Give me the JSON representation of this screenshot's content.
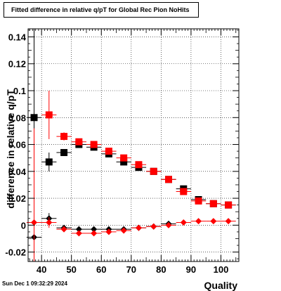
{
  "title": "Fitted difference in relative q/pT for Global Rec Pion NoHits",
  "timestamp": "Sun Dec  1 09:32:29 2024",
  "chart_data": {
    "type": "scatter",
    "xlabel": "Quality",
    "ylabel": "difference in relative q/pT",
    "xlim": [
      35.5,
      106
    ],
    "ylim": [
      -0.027,
      0.146
    ],
    "grid": true,
    "x_ticks": [
      40,
      50,
      60,
      70,
      80,
      90,
      100
    ],
    "y_ticks": [
      -0.02,
      0,
      0.02,
      0.04,
      0.06,
      0.08,
      0.1,
      0.12,
      0.14
    ],
    "y_tick_labels": [
      "-0.02",
      "0",
      "0.02",
      "0.04",
      "0.06",
      "0.08",
      "0.1",
      "0.12",
      "0.14"
    ],
    "marker_colors": {
      "black": "#000000",
      "red": "#ff0000"
    },
    "series": [
      {
        "marker": "square",
        "color": "#000000",
        "points": [
          {
            "x": 37.5,
            "y": 0.08,
            "yerr": 0.07
          },
          {
            "x": 42.5,
            "y": 0.047,
            "yerr": 0.007
          },
          {
            "x": 47.5,
            "y": 0.054,
            "yerr": 0.002
          },
          {
            "x": 52.5,
            "y": 0.06,
            "yerr": 0.001
          },
          {
            "x": 57.5,
            "y": 0.058,
            "yerr": 0.001
          },
          {
            "x": 62.5,
            "y": 0.053,
            "yerr": 0.001
          },
          {
            "x": 67.5,
            "y": 0.047,
            "yerr": 0.001
          },
          {
            "x": 72.5,
            "y": 0.043,
            "yerr": 0.001
          },
          {
            "x": 77.5,
            "y": 0.04,
            "yerr": 0.001
          },
          {
            "x": 82.5,
            "y": 0.034,
            "yerr": 0.001
          },
          {
            "x": 87.5,
            "y": 0.027,
            "yerr": 0.001
          },
          {
            "x": 92.5,
            "y": 0.019,
            "yerr": 0.001
          },
          {
            "x": 97.5,
            "y": 0.016,
            "yerr": 0.001
          },
          {
            "x": 102.5,
            "y": 0.015,
            "yerr": 0.001
          }
        ]
      },
      {
        "marker": "square",
        "color": "#ff0000",
        "points": [
          {
            "x": 42.5,
            "y": 0.082,
            "yerr": 0.018
          },
          {
            "x": 47.5,
            "y": 0.066,
            "yerr": 0.003
          },
          {
            "x": 52.5,
            "y": 0.062,
            "yerr": 0.001
          },
          {
            "x": 57.5,
            "y": 0.06,
            "yerr": 0.001
          },
          {
            "x": 62.5,
            "y": 0.055,
            "yerr": 0.001
          },
          {
            "x": 67.5,
            "y": 0.05,
            "yerr": 0.001
          },
          {
            "x": 72.5,
            "y": 0.045,
            "yerr": 0.001
          },
          {
            "x": 77.5,
            "y": 0.04,
            "yerr": 0.001
          },
          {
            "x": 82.5,
            "y": 0.034,
            "yerr": 0.001
          },
          {
            "x": 87.5,
            "y": 0.025,
            "yerr": 0.001
          },
          {
            "x": 92.5,
            "y": 0.018,
            "yerr": 0.001
          },
          {
            "x": 97.5,
            "y": 0.016,
            "yerr": 0.001
          },
          {
            "x": 102.5,
            "y": 0.015,
            "yerr": 0.001
          }
        ]
      },
      {
        "marker": "diamond",
        "color": "#000000",
        "points": [
          {
            "x": 37.5,
            "y": -0.009,
            "yerr": 0.018
          },
          {
            "x": 42.5,
            "y": 0.005,
            "yerr": 0.004
          },
          {
            "x": 47.5,
            "y": -0.002,
            "yerr": 0.001
          },
          {
            "x": 52.5,
            "y": -0.003,
            "yerr": 0.001
          },
          {
            "x": 57.5,
            "y": -0.003,
            "yerr": 0.001
          },
          {
            "x": 62.5,
            "y": -0.003,
            "yerr": 0.001
          },
          {
            "x": 67.5,
            "y": -0.003,
            "yerr": 0.001
          },
          {
            "x": 72.5,
            "y": -0.002,
            "yerr": 0.001
          },
          {
            "x": 77.5,
            "y": -0.001,
            "yerr": 0.001
          },
          {
            "x": 82.5,
            "y": 0.001,
            "yerr": 0.001
          }
        ]
      },
      {
        "marker": "diamond",
        "color": "#ff0000",
        "points": [
          {
            "x": 37.5,
            "y": 0.002,
            "yerr": 0.07
          },
          {
            "x": 42.5,
            "y": 0.002,
            "yerr": 0.004
          },
          {
            "x": 47.5,
            "y": -0.003,
            "yerr": 0.001
          },
          {
            "x": 52.5,
            "y": -0.006,
            "yerr": 0.001
          },
          {
            "x": 57.5,
            "y": -0.006,
            "yerr": 0.001
          },
          {
            "x": 62.5,
            "y": -0.005,
            "yerr": 0.001
          },
          {
            "x": 67.5,
            "y": -0.004,
            "yerr": 0.001
          },
          {
            "x": 72.5,
            "y": -0.002,
            "yerr": 0.001
          },
          {
            "x": 77.5,
            "y": -0.001,
            "yerr": 0.001
          },
          {
            "x": 82.5,
            "y": 0.0,
            "yerr": 0.001
          },
          {
            "x": 87.5,
            "y": 0.002,
            "yerr": 0.001
          },
          {
            "x": 92.5,
            "y": 0.003,
            "yerr": 0.001
          },
          {
            "x": 97.5,
            "y": 0.003,
            "yerr": 0.001
          },
          {
            "x": 102.5,
            "y": 0.003,
            "yerr": 0.001
          }
        ]
      }
    ]
  }
}
